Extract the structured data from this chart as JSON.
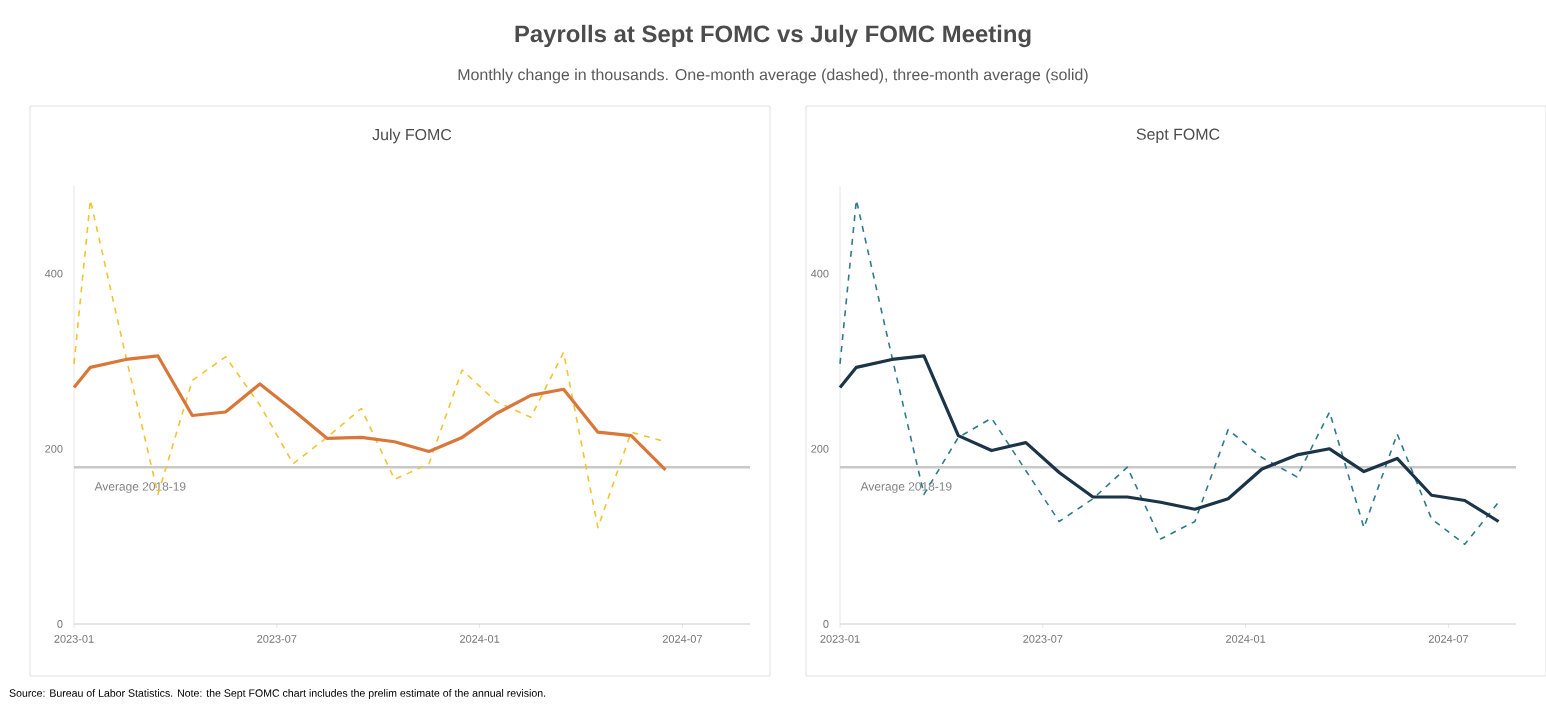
{
  "chart_data": [
    {
      "type": "other",
      "title": "Payrolls at Sept FOMC vs July FOMC Meeting",
      "subtitle": "Monthly change in thousands. One-month average (dashed), three-month average (solid)",
      "annotations": [
        "Source: Bureau of Labor Statistics. Note: the Sept FOMC chart includes the prelim estimate of the annual revision."
      ]
    },
    {
      "type": "line",
      "title": "July FOMC",
      "x": [
        "2023-01-01",
        "2023-01-16",
        "2023-02-16",
        "2023-03-16",
        "2023-04-16",
        "2023-05-16",
        "2023-06-16",
        "2023-07-16",
        "2023-08-16",
        "2023-09-16",
        "2023-10-16",
        "2023-11-16",
        "2023-12-16",
        "2024-01-16",
        "2024-02-16",
        "2024-03-16",
        "2024-04-16",
        "2024-05-16",
        "2024-06-16"
      ],
      "series": [
        {
          "color": "#f2c431",
          "line_style": "dashed",
          "values": [
            297,
            484,
            305,
            148,
            278,
            305,
            250,
            183,
            213,
            246,
            165,
            183,
            290,
            254,
            236,
            310,
            110,
            219,
            208
          ]
        },
        {
          "color": "#d9773a",
          "line_style": "solid",
          "values": [
            270,
            293,
            302,
            306,
            238,
            242,
            274,
            244,
            212,
            213,
            208,
            197,
            213,
            240,
            261,
            268,
            219,
            215,
            176
          ]
        }
      ],
      "xlim": [
        "2023-01-01",
        "2024-09-01"
      ],
      "xticks": [
        "2023-01",
        "2023-07",
        "2024-01",
        "2024-07"
      ],
      "ylim": [
        0,
        500
      ],
      "yticks": [
        0,
        200,
        400
      ],
      "ref_lines": [
        {
          "axis": "y",
          "value": 179,
          "label": "Average 2018-19",
          "color": "#c8c8c8"
        }
      ]
    },
    {
      "type": "line",
      "title": "Sept FOMC",
      "x": [
        "2023-01-01",
        "2023-01-16",
        "2023-02-16",
        "2023-03-16",
        "2023-04-16",
        "2023-05-16",
        "2023-06-16",
        "2023-07-16",
        "2023-08-16",
        "2023-09-16",
        "2023-10-16",
        "2023-11-16",
        "2023-12-16",
        "2024-01-16",
        "2024-02-16",
        "2024-03-16",
        "2024-04-16",
        "2024-05-16",
        "2024-06-16",
        "2024-07-16",
        "2024-08-16"
      ],
      "series": [
        {
          "color": "#2e7a8c",
          "line_style": "dashed",
          "values": [
            297,
            484,
            305,
            148,
            213,
            235,
            175,
            117,
            143,
            179,
            97,
            117,
            222,
            190,
            168,
            242,
            110,
            217,
            120,
            91,
            139
          ]
        },
        {
          "color": "#1b3447",
          "line_style": "solid",
          "values": [
            270,
            293,
            302,
            306,
            215,
            198,
            207,
            173,
            145,
            145,
            139,
            131,
            143,
            177,
            193,
            200,
            174,
            189,
            147,
            141,
            117
          ]
        }
      ],
      "xlim": [
        "2023-01-01",
        "2024-09-01"
      ],
      "xticks": [
        "2023-01",
        "2023-07",
        "2024-01",
        "2024-07"
      ],
      "ylim": [
        0,
        500
      ],
      "yticks": [
        0,
        200,
        400
      ],
      "ref_lines": [
        {
          "axis": "y",
          "value": 179,
          "label": "Average 2018-19",
          "color": "#c8c8c8"
        }
      ]
    }
  ]
}
